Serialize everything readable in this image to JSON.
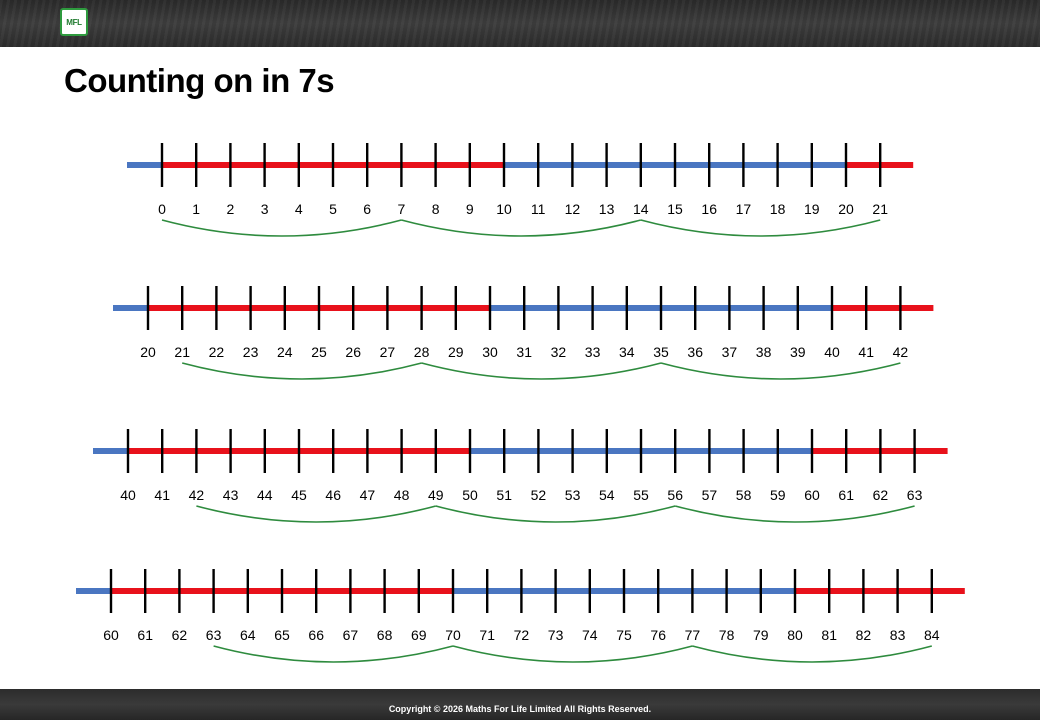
{
  "title": "Counting on in 7s",
  "logo_text": "MFL",
  "footer": {
    "copyright": "Copyright © 2026 Maths For Life Limited All Rights Reserved."
  },
  "colors": {
    "red_segment": "#e8111b",
    "blue_segment": "#4a76c1",
    "tick": "#000000",
    "jump_arc": "#2e8b3e",
    "logo_border": "#2e9a3e"
  },
  "number_lines": [
    {
      "start": 0,
      "end": 21,
      "step": 7,
      "labels": [
        "0",
        "1",
        "2",
        "3",
        "4",
        "5",
        "6",
        "7",
        "8",
        "9",
        "10",
        "11",
        "12",
        "13",
        "14",
        "15",
        "16",
        "17",
        "18",
        "19",
        "20",
        "21"
      ]
    },
    {
      "start": 20,
      "end": 42,
      "step": 7,
      "labels": [
        "20",
        "21",
        "22",
        "23",
        "24",
        "25",
        "26",
        "27",
        "28",
        "29",
        "30",
        "31",
        "32",
        "33",
        "34",
        "35",
        "36",
        "37",
        "38",
        "39",
        "40",
        "41",
        "42"
      ]
    },
    {
      "start": 40,
      "end": 63,
      "step": 7,
      "labels": [
        "40",
        "41",
        "42",
        "43",
        "44",
        "45",
        "46",
        "47",
        "48",
        "49",
        "50",
        "51",
        "52",
        "53",
        "54",
        "55",
        "56",
        "57",
        "58",
        "59",
        "60",
        "61",
        "62",
        "63"
      ]
    },
    {
      "start": 60,
      "end": 84,
      "step": 7,
      "labels": [
        "60",
        "61",
        "62",
        "63",
        "64",
        "65",
        "66",
        "67",
        "68",
        "69",
        "70",
        "71",
        "72",
        "73",
        "74",
        "75",
        "76",
        "77",
        "78",
        "79",
        "80",
        "81",
        "82",
        "83",
        "84"
      ]
    }
  ]
}
